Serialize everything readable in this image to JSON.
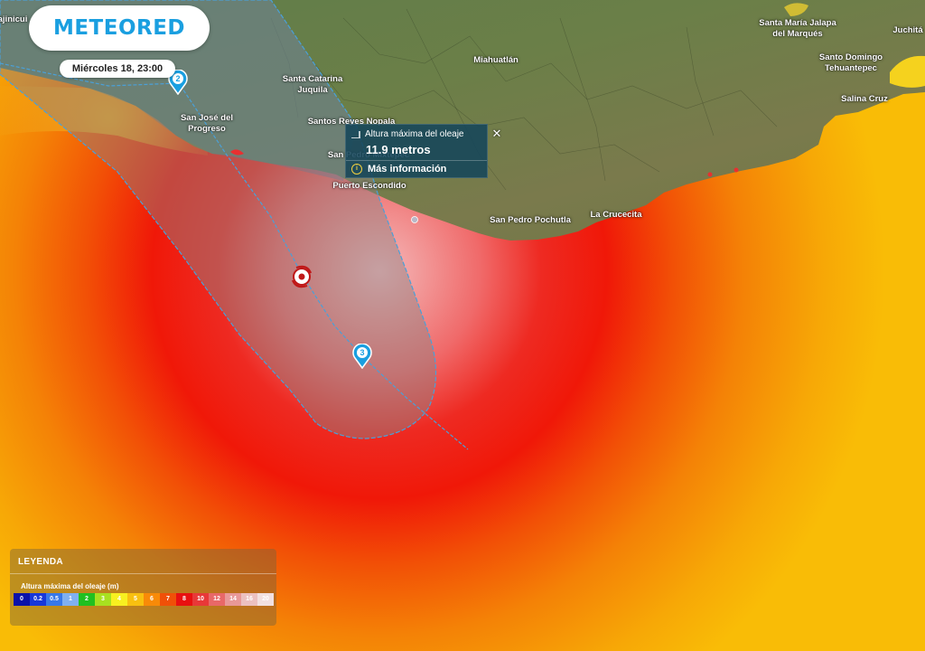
{
  "brand": {
    "logo_text": "METEORED",
    "accent_color": "#1a9fe0"
  },
  "datetime": "Miércoles 18, 23:00",
  "places": [
    {
      "name": "ajinicui",
      "css": "left:14px;top:16px;"
    },
    {
      "name": "Santa María Jalapa\ndel Marqués",
      "css": "left:883px;top:20px;"
    },
    {
      "name": "Juchitá",
      "css": "left:1005px;top:28px;"
    },
    {
      "name": "Miahuatlán",
      "css": "left:549px;top:61px;"
    },
    {
      "name": "Santo Domingo\nTehuantepec",
      "css": "left:942px;top:58px;"
    },
    {
      "name": "Santa Catarina\nJuquila",
      "css": "left:346px;top:82px;"
    },
    {
      "name": "Salina Cruz",
      "css": "left:957px;top:104px;"
    },
    {
      "name": "San José del\nProgreso",
      "css": "left:229px;top:125px;"
    },
    {
      "name": "Santos Reyes Nopala",
      "css": "left:389px;top:129px;"
    },
    {
      "name": "San Pedro Mixtepec",
      "css": "left:408px;top:166px;"
    },
    {
      "name": "Puerto Escondido",
      "css": "left:409px;top:200px;"
    },
    {
      "name": "San Pedro Pochutla",
      "css": "left:587px;top:238px;"
    },
    {
      "name": "La Crucecita",
      "css": "left:682px;top:232px;"
    }
  ],
  "popup": {
    "title": "Altura máxima del oleaje",
    "value": "11.9 metros",
    "more_info": "Más información",
    "close_symbol": "✕"
  },
  "track_markers": [
    {
      "label": "2",
      "css": "left:197px;top:91px;"
    },
    {
      "label": "3",
      "css": "left:401px;top:394px;"
    }
  ],
  "legend": {
    "title": "LEYENDA",
    "subtitle": "Altura máxima del oleaje (m)",
    "scale": [
      {
        "label": "0",
        "color": "#0a12a8"
      },
      {
        "label": "0.2",
        "color": "#1838d8"
      },
      {
        "label": "0.5",
        "color": "#3878e8"
      },
      {
        "label": "1",
        "color": "#80b0f0"
      },
      {
        "label": "2",
        "color": "#20c020"
      },
      {
        "label": "3",
        "color": "#a8e020"
      },
      {
        "label": "4",
        "color": "#f8f020"
      },
      {
        "label": "5",
        "color": "#f8c010"
      },
      {
        "label": "6",
        "color": "#f88a08"
      },
      {
        "label": "7",
        "color": "#f05008"
      },
      {
        "label": "8",
        "color": "#e81010"
      },
      {
        "label": "10",
        "color": "#e83838"
      },
      {
        "label": "12",
        "color": "#e86868"
      },
      {
        "label": "14",
        "color": "#e89898"
      },
      {
        "label": "16",
        "color": "#ecc0c0"
      },
      {
        "label": "20",
        "color": "#f2e0e0"
      }
    ]
  }
}
